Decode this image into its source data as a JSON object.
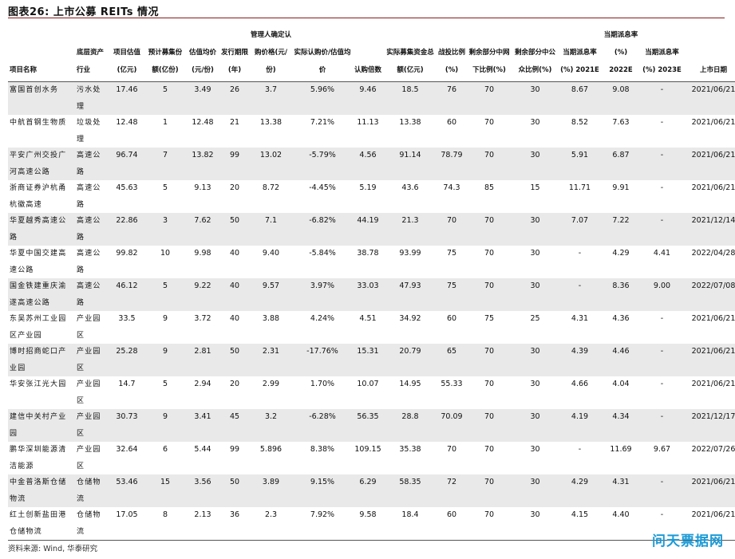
{
  "title": "图表26:  上市公募 REITs 情况",
  "headers": [
    "项目名称",
    "底层资产行业",
    "项目估值(亿元)",
    "预计募集份额(亿份)",
    "估值均价(元/份)",
    "发行期限(年)",
    "管理人确定认购价格(元/份)",
    "实际认购价/估值均价",
    "认购倍数",
    "实际募集资金总额(亿元)",
    "战投比例(%)",
    "剩余部分中网下比例(%)",
    "剩余部分中公众比例(%)",
    "当期派息率(%) 2021E",
    "当期派息率(%) 2022E",
    "当期派息率(%) 2023E",
    "上市日期"
  ],
  "rows": [
    [
      "富国首创水务",
      "污水处理",
      "17.46",
      "5",
      "3.49",
      "26",
      "3.7",
      "5.96%",
      "9.46",
      "18.5",
      "76",
      "70",
      "30",
      "8.67",
      "9.08",
      "-",
      "2021/06/21"
    ],
    [
      "中航首钢生物质",
      "垃圾处理",
      "12.48",
      "1",
      "12.48",
      "21",
      "13.38",
      "7.21%",
      "11.13",
      "13.38",
      "60",
      "70",
      "30",
      "8.52",
      "7.63",
      "-",
      "2021/06/21"
    ],
    [
      "平安广州交投广河高速公路",
      "高速公路",
      "96.74",
      "7",
      "13.82",
      "99",
      "13.02",
      "-5.79%",
      "4.56",
      "91.14",
      "78.79",
      "70",
      "30",
      "5.91",
      "6.87",
      "-",
      "2021/06/21"
    ],
    [
      "浙商证券沪杭甬杭徽高速",
      "高速公路",
      "45.63",
      "5",
      "9.13",
      "20",
      "8.72",
      "-4.45%",
      "5.19",
      "43.6",
      "74.3",
      "85",
      "15",
      "11.71",
      "9.91",
      "-",
      "2021/06/21"
    ],
    [
      "华夏越秀高速公路",
      "高速公路",
      "22.86",
      "3",
      "7.62",
      "50",
      "7.1",
      "-6.82%",
      "44.19",
      "21.3",
      "70",
      "70",
      "30",
      "7.07",
      "7.22",
      "-",
      "2021/12/14"
    ],
    [
      "华夏中国交建高速公路",
      "高速公路",
      "99.82",
      "10",
      "9.98",
      "40",
      "9.40",
      "-5.84%",
      "38.78",
      "93.99",
      "75",
      "70",
      "30",
      "-",
      "4.29",
      "4.41",
      "2022/04/28"
    ],
    [
      "国金铁建重庆渝遂高速公路",
      "高速公路",
      "46.12",
      "5",
      "9.22",
      "40",
      "9.57",
      "3.97%",
      "33.03",
      "47.93",
      "75",
      "70",
      "30",
      "-",
      "8.36",
      "9.00",
      "2022/07/08"
    ],
    [
      "东吴苏州工业园区产业园",
      "产业园区",
      "33.5",
      "9",
      "3.72",
      "40",
      "3.88",
      "4.24%",
      "4.51",
      "34.92",
      "60",
      "75",
      "25",
      "4.31",
      "4.36",
      "-",
      "2021/06/21"
    ],
    [
      "博时招商蛇口产业园",
      "产业园区",
      "25.28",
      "9",
      "2.81",
      "50",
      "2.31",
      "-17.76%",
      "15.31",
      "20.79",
      "65",
      "70",
      "30",
      "4.39",
      "4.46",
      "-",
      "2021/06/21"
    ],
    [
      "华安张江光大园",
      "产业园区",
      "14.7",
      "5",
      "2.94",
      "20",
      "2.99",
      "1.70%",
      "10.07",
      "14.95",
      "55.33",
      "70",
      "30",
      "4.66",
      "4.04",
      "-",
      "2021/06/21"
    ],
    [
      "建信中关村产业园",
      "产业园区",
      "30.73",
      "9",
      "3.41",
      "45",
      "3.2",
      "-6.28%",
      "56.35",
      "28.8",
      "70.09",
      "70",
      "30",
      "4.19",
      "4.34",
      "-",
      "2021/12/17"
    ],
    [
      "鹏华深圳能源清洁能源",
      "产业园区",
      "32.64",
      "6",
      "5.44",
      "99",
      "5.896",
      "8.38%",
      "109.15",
      "35.38",
      "70",
      "70",
      "30",
      "-",
      "11.69",
      "9.67",
      "2022/07/26"
    ],
    [
      "中金普洛斯仓储物流",
      "仓储物流",
      "53.46",
      "15",
      "3.56",
      "50",
      "3.89",
      "9.15%",
      "6.29",
      "58.35",
      "72",
      "70",
      "30",
      "4.29",
      "4.31",
      "-",
      "2021/06/21"
    ],
    [
      "红土创新盐田港仓储物流",
      "仓储物流",
      "17.05",
      "8",
      "2.13",
      "36",
      "2.3",
      "7.92%",
      "9.58",
      "18.4",
      "60",
      "70",
      "30",
      "4.15",
      "4.40",
      "-",
      "2021/06/21"
    ]
  ],
  "source": "资料来源: Wind, 华泰研究",
  "watermark": "问天票据网"
}
